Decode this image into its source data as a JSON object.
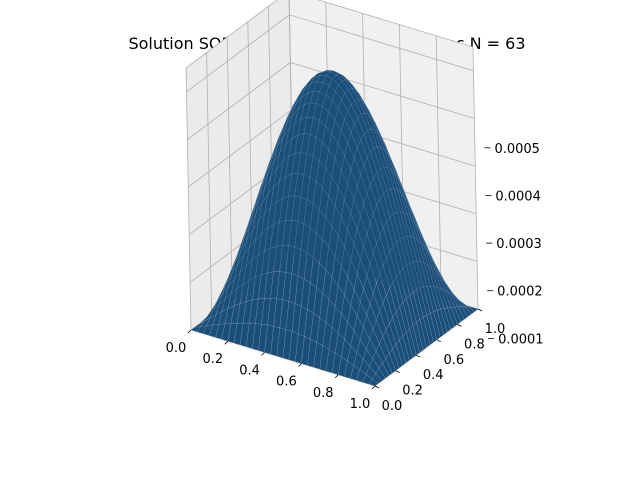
{
  "chart_data": {
    "type": "surface3d",
    "title": "Solution SOR (avec w = 0.5) pour F2 avec N = 63",
    "xlabel": "",
    "ylabel": "",
    "zlabel": "",
    "x_ticks": [
      "0.0",
      "0.2",
      "0.4",
      "0.6",
      "0.8",
      "1.0"
    ],
    "y_ticks": [
      "0.0",
      "0.2",
      "0.4",
      "0.6",
      "0.8",
      "1.0"
    ],
    "z_ticks": [
      "0.0001",
      "0.0002",
      "0.0003",
      "0.0004",
      "0.0005"
    ],
    "xlim": [
      0,
      1
    ],
    "ylim": [
      0,
      1
    ],
    "zlim": [
      0,
      0.00055
    ],
    "grid": true,
    "surface": {
      "function": "u(x, y) = 0.00052 * sin(pi*x) * sin(pi*y)",
      "peak_value": 0.00052,
      "boundary_value": 0
    },
    "colors": {
      "surface": "#1b4e79",
      "surface_edge": "#ffffff",
      "pane": "#f2f2f2",
      "grid": "#b0b0b0"
    }
  }
}
